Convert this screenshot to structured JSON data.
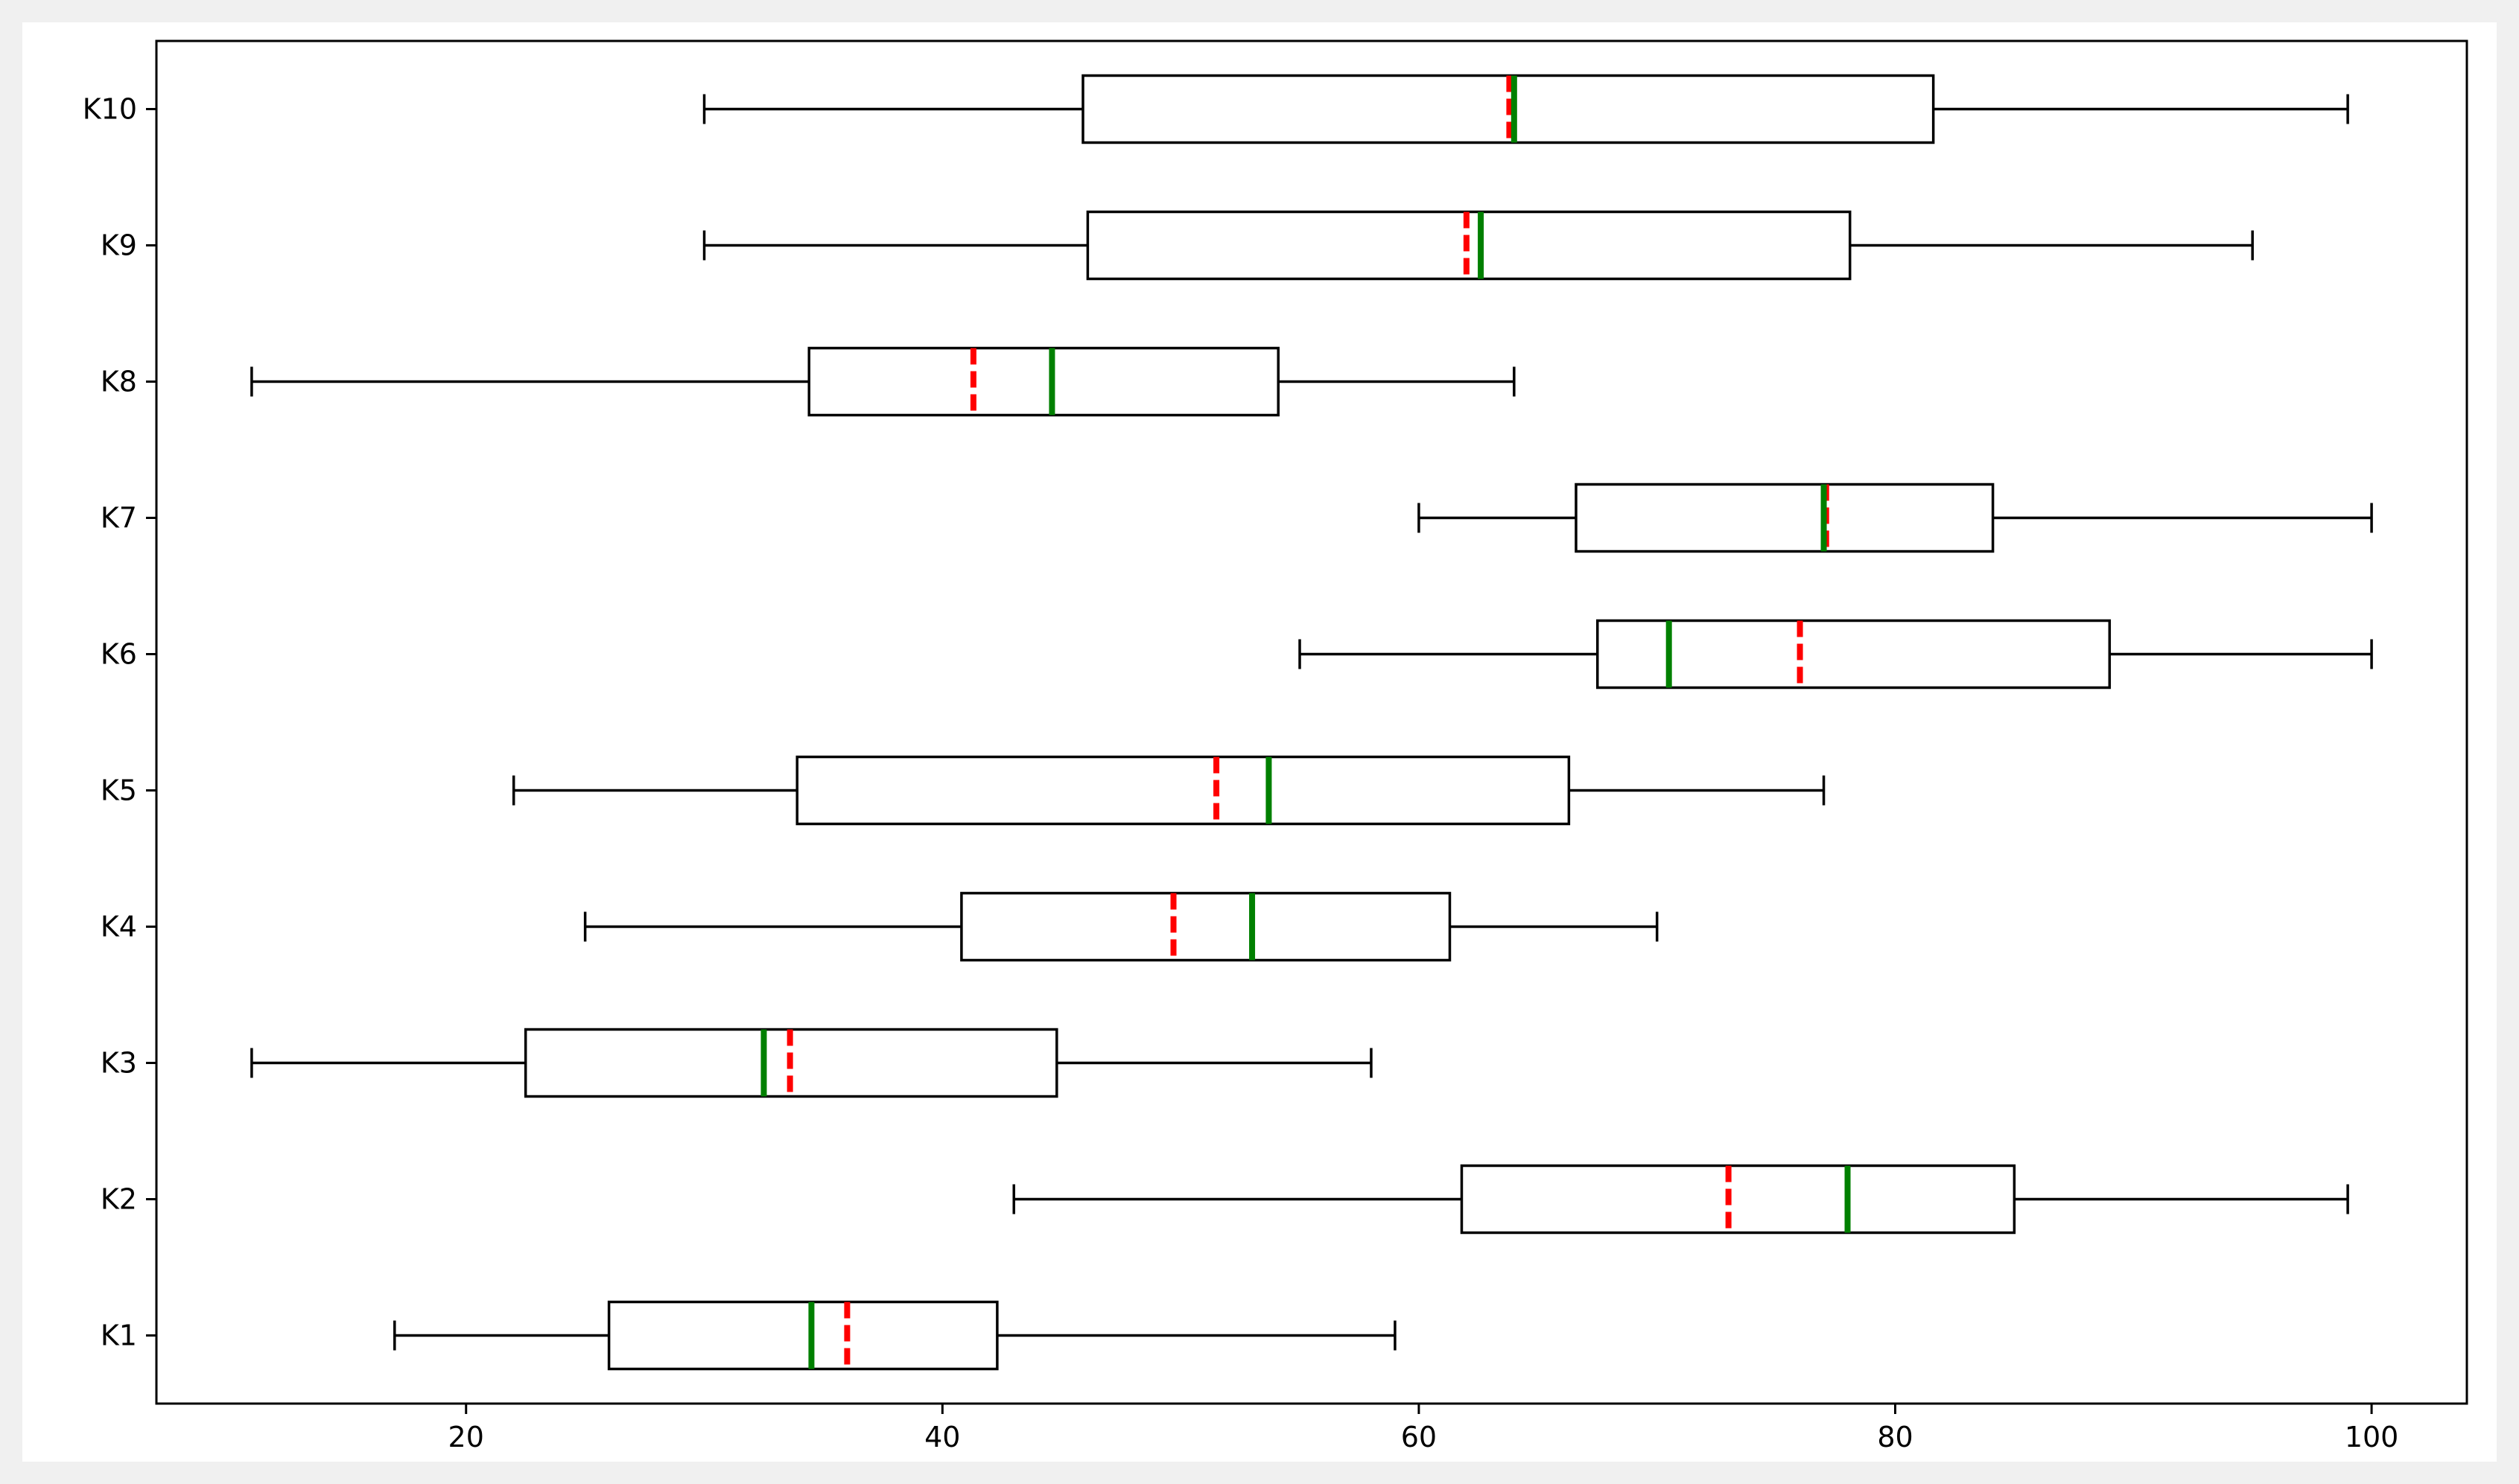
{
  "chart_data": {
    "type": "boxplot",
    "orientation": "horizontal",
    "title": "",
    "xlabel": "",
    "ylabel": "",
    "xlim": [
      7,
      104
    ],
    "xticks": [
      20,
      40,
      60,
      80,
      100
    ],
    "grid": false,
    "legend": "none",
    "colors": {
      "box": "#000000",
      "median": "#008000",
      "mean": "#ff0000"
    },
    "boxes": [
      {
        "label": "K1",
        "whislo": 17,
        "q1": 26,
        "med": 34.5,
        "q3": 42.3,
        "whishi": 59,
        "mean": 36
      },
      {
        "label": "K2",
        "whislo": 43,
        "q1": 61.8,
        "med": 78,
        "q3": 85,
        "whishi": 99,
        "mean": 73
      },
      {
        "label": "K3",
        "whislo": 11,
        "q1": 22.5,
        "med": 32.5,
        "q3": 44.8,
        "whishi": 58,
        "mean": 33.6
      },
      {
        "label": "K4",
        "whislo": 25,
        "q1": 40.8,
        "med": 53,
        "q3": 61.3,
        "whishi": 70,
        "mean": 49.7
      },
      {
        "label": "K5",
        "whislo": 22,
        "q1": 33.9,
        "med": 53.7,
        "q3": 66.3,
        "whishi": 77,
        "mean": 51.5
      },
      {
        "label": "K6",
        "whislo": 55,
        "q1": 67.5,
        "med": 70.5,
        "q3": 89,
        "whishi": 100,
        "mean": 76
      },
      {
        "label": "K7",
        "whislo": 60,
        "q1": 66.6,
        "med": 77,
        "q3": 84.1,
        "whishi": 100,
        "mean": 77.1
      },
      {
        "label": "K8",
        "whislo": 11,
        "q1": 34.4,
        "med": 44.6,
        "q3": 54.1,
        "whishi": 64,
        "mean": 41.3
      },
      {
        "label": "K9",
        "whislo": 30,
        "q1": 46.1,
        "med": 62.6,
        "q3": 78.1,
        "whishi": 95,
        "mean": 62
      },
      {
        "label": "K10",
        "whislo": 30,
        "q1": 45.9,
        "med": 64,
        "q3": 81.6,
        "whishi": 99,
        "mean": 63.8
      }
    ]
  }
}
